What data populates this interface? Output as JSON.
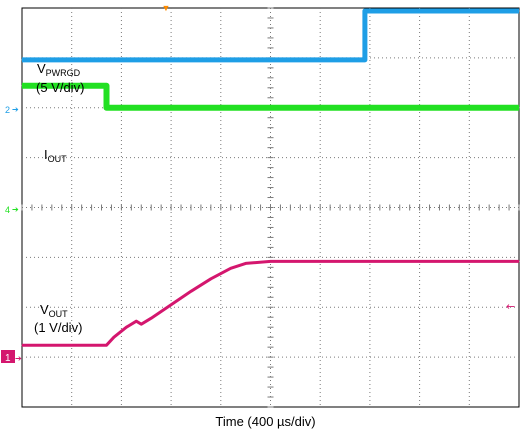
{
  "chart_data": {
    "type": "line",
    "title": "",
    "xlabel": "Time (400 µs/div)",
    "ylabel": "",
    "grid": true,
    "divisions": {
      "x": 10,
      "y": 8
    },
    "xlim": [
      0,
      10
    ],
    "ylim": [
      0,
      8
    ],
    "markers": {
      "trigger": "▼",
      "ch2": "2",
      "ch4": "4",
      "ch1": "1",
      "ref_arrow": "←"
    },
    "series": [
      {
        "name": "VPWRGD",
        "label_main": "V",
        "label_sub": "PWRGD",
        "scale": "(5 V/div)",
        "color": "#1e9ee6",
        "x": [
          0,
          3.65,
          6.9,
          6.9,
          10
        ],
        "y": [
          6.96,
          6.96,
          6.96,
          7.94,
          7.94
        ]
      },
      {
        "name": "IOUT",
        "label_main": "I",
        "label_sub": "OUT",
        "scale": "",
        "color": "#22e022",
        "x": [
          0,
          1.7,
          1.7,
          1.78,
          10
        ],
        "y": [
          6.44,
          6.44,
          6.0,
          6.0,
          6.0
        ]
      },
      {
        "name": "VOUT",
        "label_main": "V",
        "label_sub": "OUT",
        "scale": "(1 V/div)",
        "color": "#d4166e",
        "x": [
          0,
          1.7,
          1.85,
          2.1,
          2.3,
          2.4,
          2.6,
          3.0,
          3.4,
          3.8,
          4.2,
          4.5,
          5.0,
          10
        ],
        "y": [
          1.24,
          1.24,
          1.4,
          1.6,
          1.72,
          1.66,
          1.78,
          2.05,
          2.32,
          2.57,
          2.78,
          2.88,
          2.92,
          2.92
        ]
      }
    ]
  }
}
